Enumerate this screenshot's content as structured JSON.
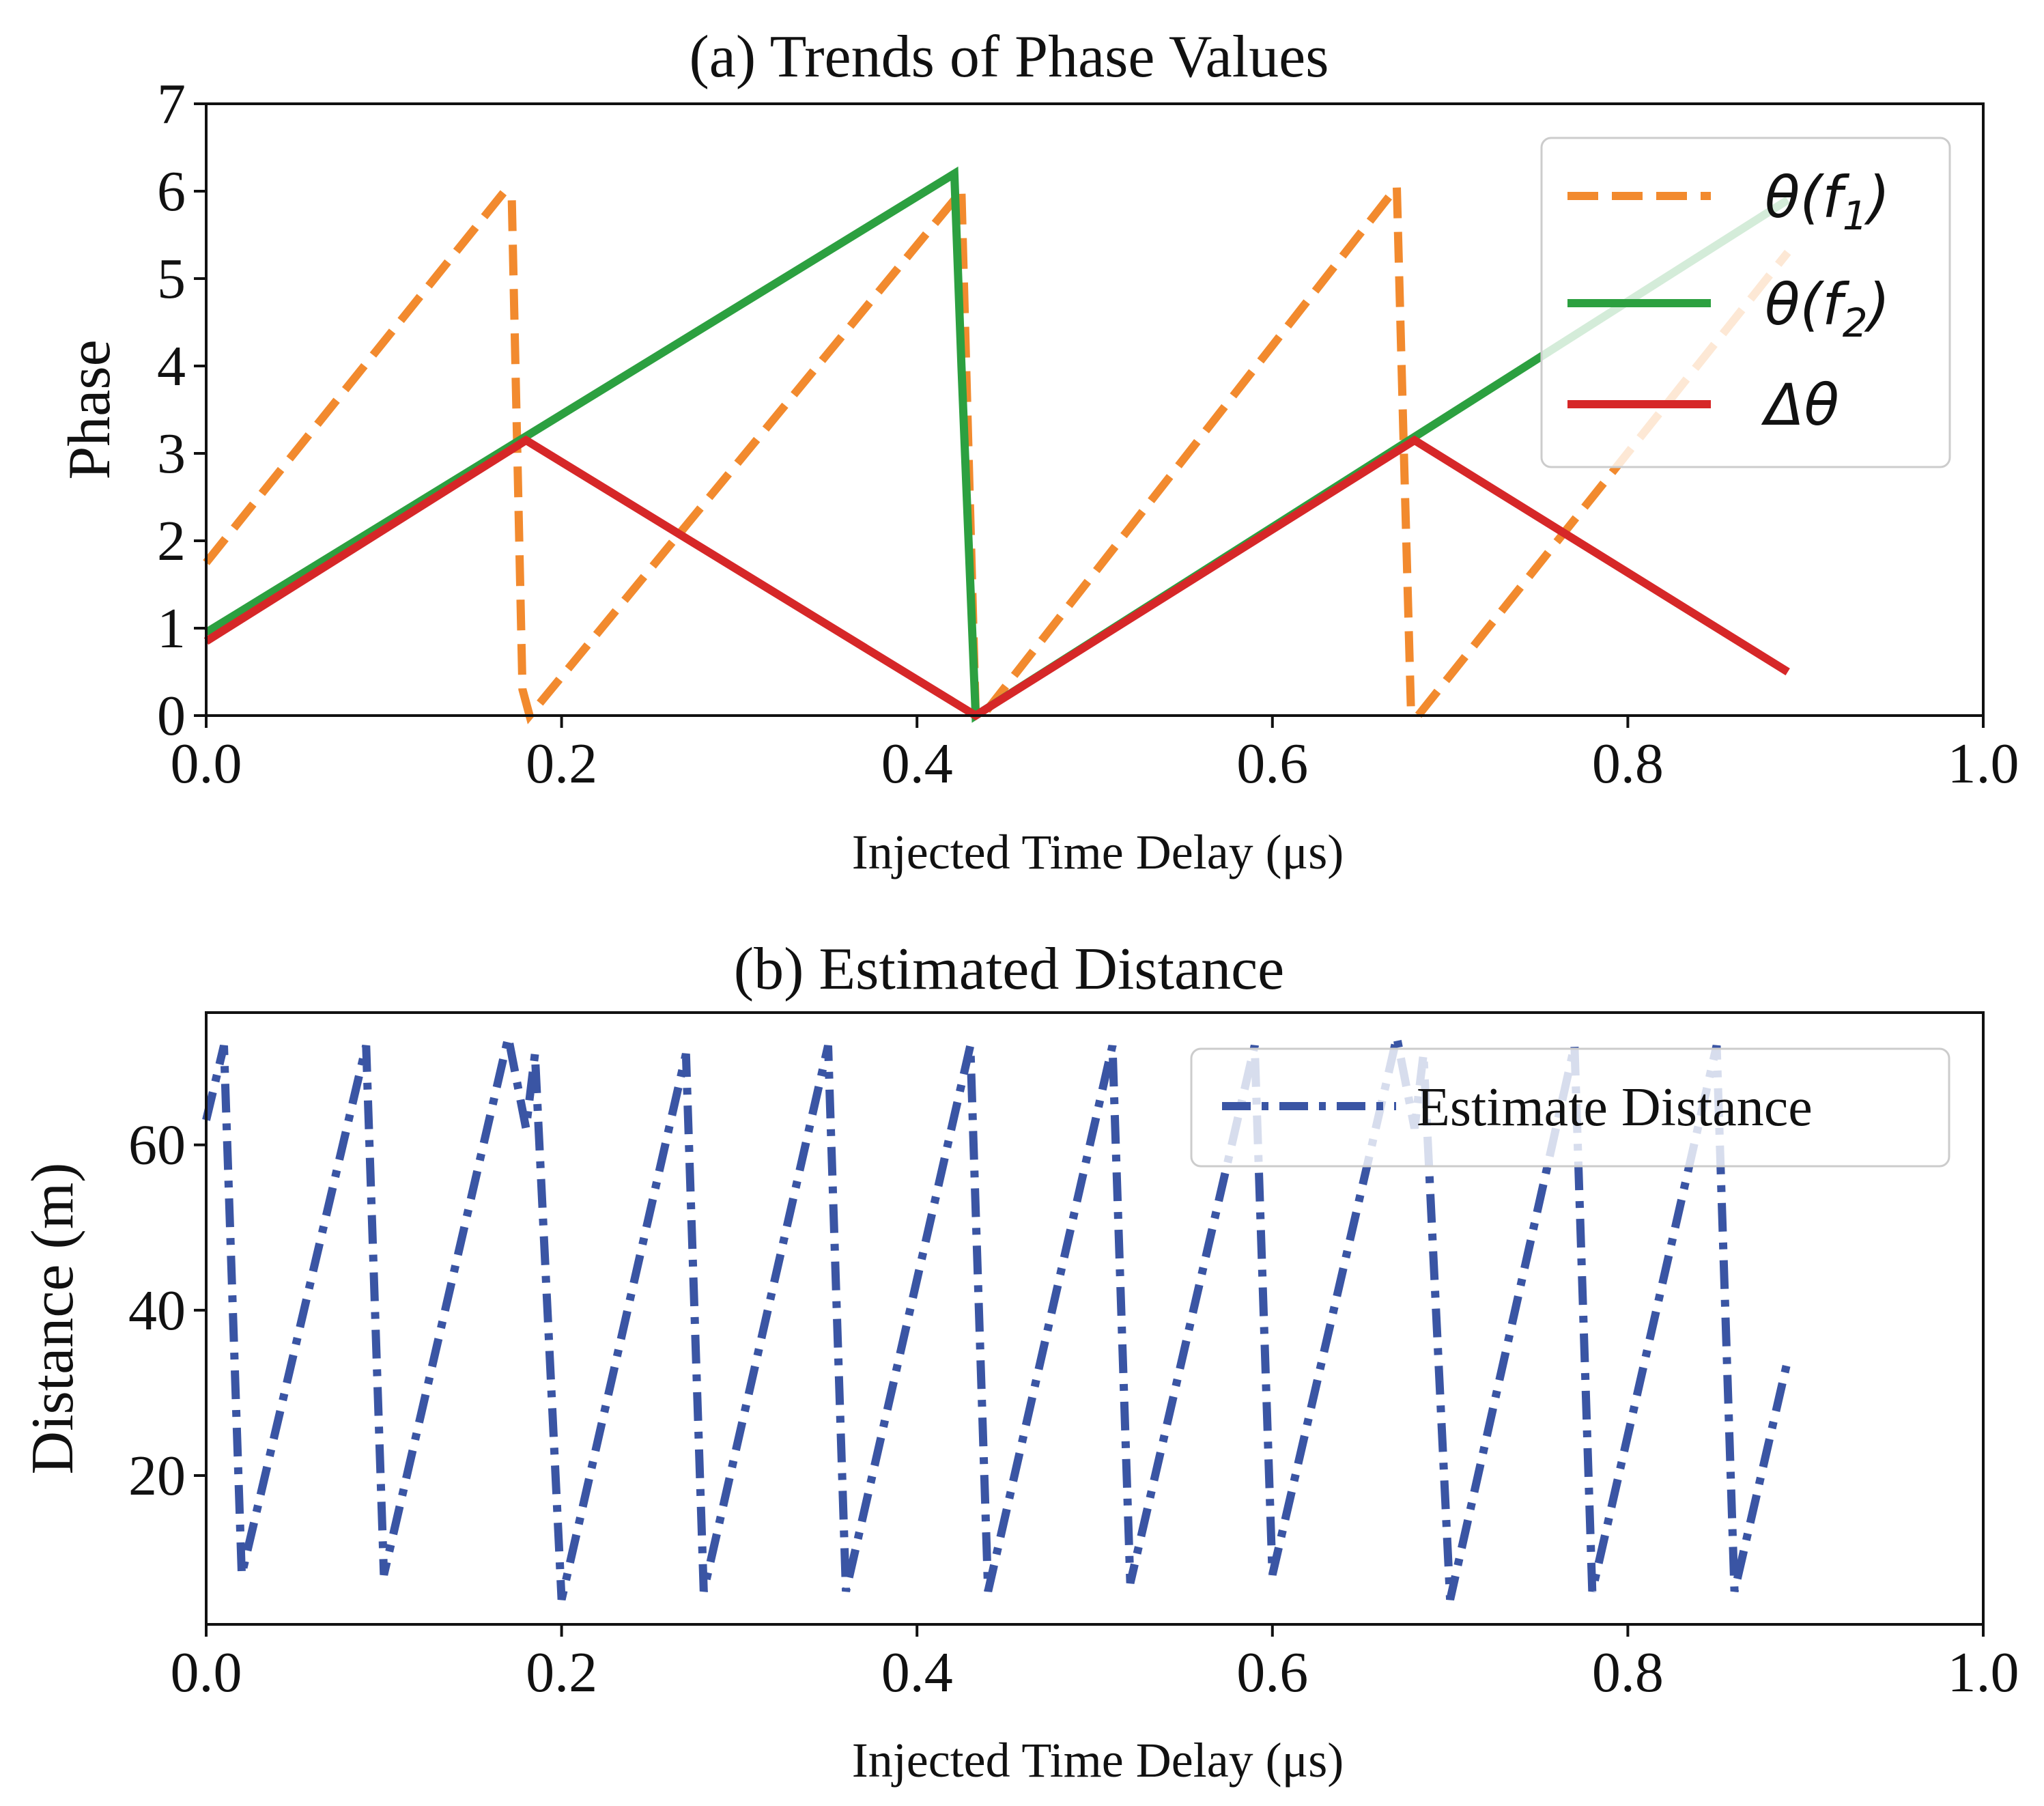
{
  "chart_data": [
    {
      "type": "line",
      "title": "(a) Trends of Phase Values",
      "xlabel": "Injected Time Delay (μs)",
      "ylabel": "Phase",
      "xlim": [
        0.0,
        1.0
      ],
      "ylim": [
        0,
        7
      ],
      "xticks": [
        "0.0",
        "0.2",
        "0.4",
        "0.6",
        "0.8",
        "1.0"
      ],
      "yticks": [
        "0",
        "1",
        "2",
        "3",
        "4",
        "5",
        "6",
        "7"
      ],
      "grid": false,
      "legend_position": "top-right",
      "series": [
        {
          "name": "θ(f1)",
          "label_base": "θ(f",
          "label_sub": "1",
          "label_end": ")",
          "color": "#f28a2e",
          "style": "dashed",
          "x": [
            0.0,
            0.168,
            0.172,
            0.178,
            0.182,
            0.425,
            0.429,
            0.433,
            0.437,
            0.67,
            0.674,
            0.678,
            0.682,
            0.89
          ],
          "y": [
            1.75,
            6.0,
            5.9,
            0.3,
            0.0,
            6.0,
            3.0,
            0.05,
            0.0,
            6.05,
            3.0,
            0.05,
            0.0,
            5.3
          ]
        },
        {
          "name": "θ(f2)",
          "label_base": "θ(f",
          "label_sub": "2",
          "label_end": ")",
          "color": "#2ca040",
          "style": "solid",
          "x": [
            0.0,
            0.421,
            0.425,
            0.433,
            0.89
          ],
          "y": [
            0.95,
            6.2,
            4.0,
            0.0,
            5.9
          ]
        },
        {
          "name": "Δθ",
          "label_base": "Δθ",
          "label_sub": "",
          "label_end": "",
          "color": "#d62728",
          "style": "solid",
          "x": [
            0.0,
            0.18,
            0.433,
            0.68,
            0.89
          ],
          "y": [
            0.85,
            3.15,
            0.0,
            3.15,
            0.5
          ]
        }
      ]
    },
    {
      "type": "line",
      "title": "(b) Estimated Distance",
      "xlabel": "Injected Time Delay (μs)",
      "ylabel": "Distance (m)",
      "xlim": [
        0.0,
        1.0
      ],
      "ylim": [
        2,
        76
      ],
      "xticks": [
        "0.0",
        "0.2",
        "0.4",
        "0.6",
        "0.8",
        "1.0"
      ],
      "yticks": [
        "20",
        "40",
        "60"
      ],
      "ytick_values": [
        20,
        40,
        60
      ],
      "grid": false,
      "legend_position": "top-right",
      "series": [
        {
          "name": "Estimate Distance",
          "color": "#3a55a4",
          "style": "dashdot",
          "x": [
            0.0,
            0.01,
            0.02,
            0.09,
            0.1,
            0.17,
            0.18,
            0.185,
            0.2,
            0.27,
            0.28,
            0.35,
            0.36,
            0.43,
            0.44,
            0.51,
            0.52,
            0.59,
            0.6,
            0.67,
            0.68,
            0.685,
            0.7,
            0.77,
            0.78,
            0.85,
            0.86,
            0.89
          ],
          "y": [
            63,
            72,
            8,
            72,
            8,
            73,
            62,
            71,
            5,
            71,
            6,
            72,
            6,
            72,
            6,
            72,
            7,
            72,
            8,
            73,
            62,
            71,
            5,
            72,
            6,
            72,
            6,
            34
          ]
        }
      ]
    }
  ],
  "unit_mu": "μs"
}
